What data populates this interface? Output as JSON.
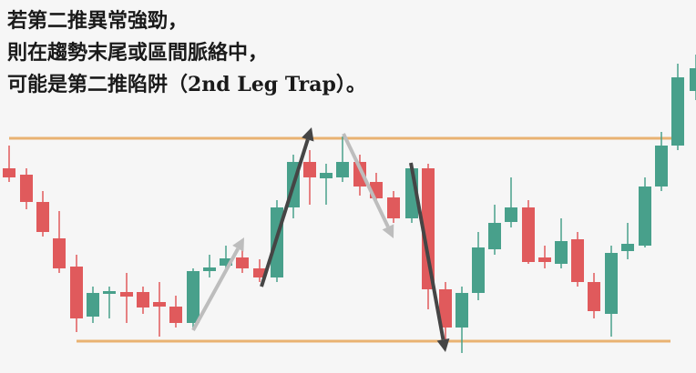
{
  "caption": {
    "lines": [
      "若第二推異常強勁，",
      "則在趨勢末尾或區間脈絡中，",
      "可能是第二推陷阱（2nd Leg Trap）。"
    ]
  }
}
